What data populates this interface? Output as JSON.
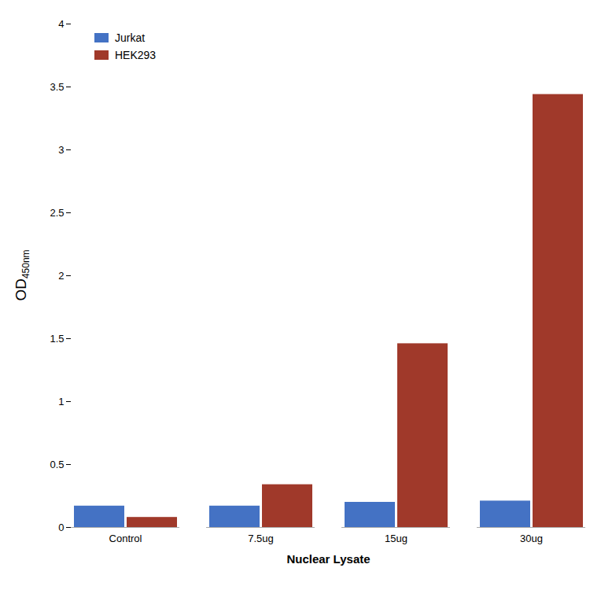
{
  "chart_data": {
    "type": "bar",
    "categories": [
      "Control",
      "7.5ug",
      "15ug",
      "30ug"
    ],
    "series": [
      {
        "name": "Jurkat",
        "color": "#4472C4",
        "values": [
          0.17,
          0.17,
          0.2,
          0.21
        ]
      },
      {
        "name": "HEK293",
        "color": "#A0392A",
        "values": [
          0.08,
          0.34,
          1.46,
          3.44
        ]
      }
    ],
    "xlabel": "Nuclear Lysate",
    "ylabel": "OD",
    "annotations": [
      "450nm"
    ],
    "ylim": [
      0,
      4.0
    ],
    "yticks": [
      0,
      0.5,
      1,
      1.5,
      2,
      2.5,
      3,
      3.5,
      4
    ],
    "legend": "upper left",
    "grid": false
  }
}
